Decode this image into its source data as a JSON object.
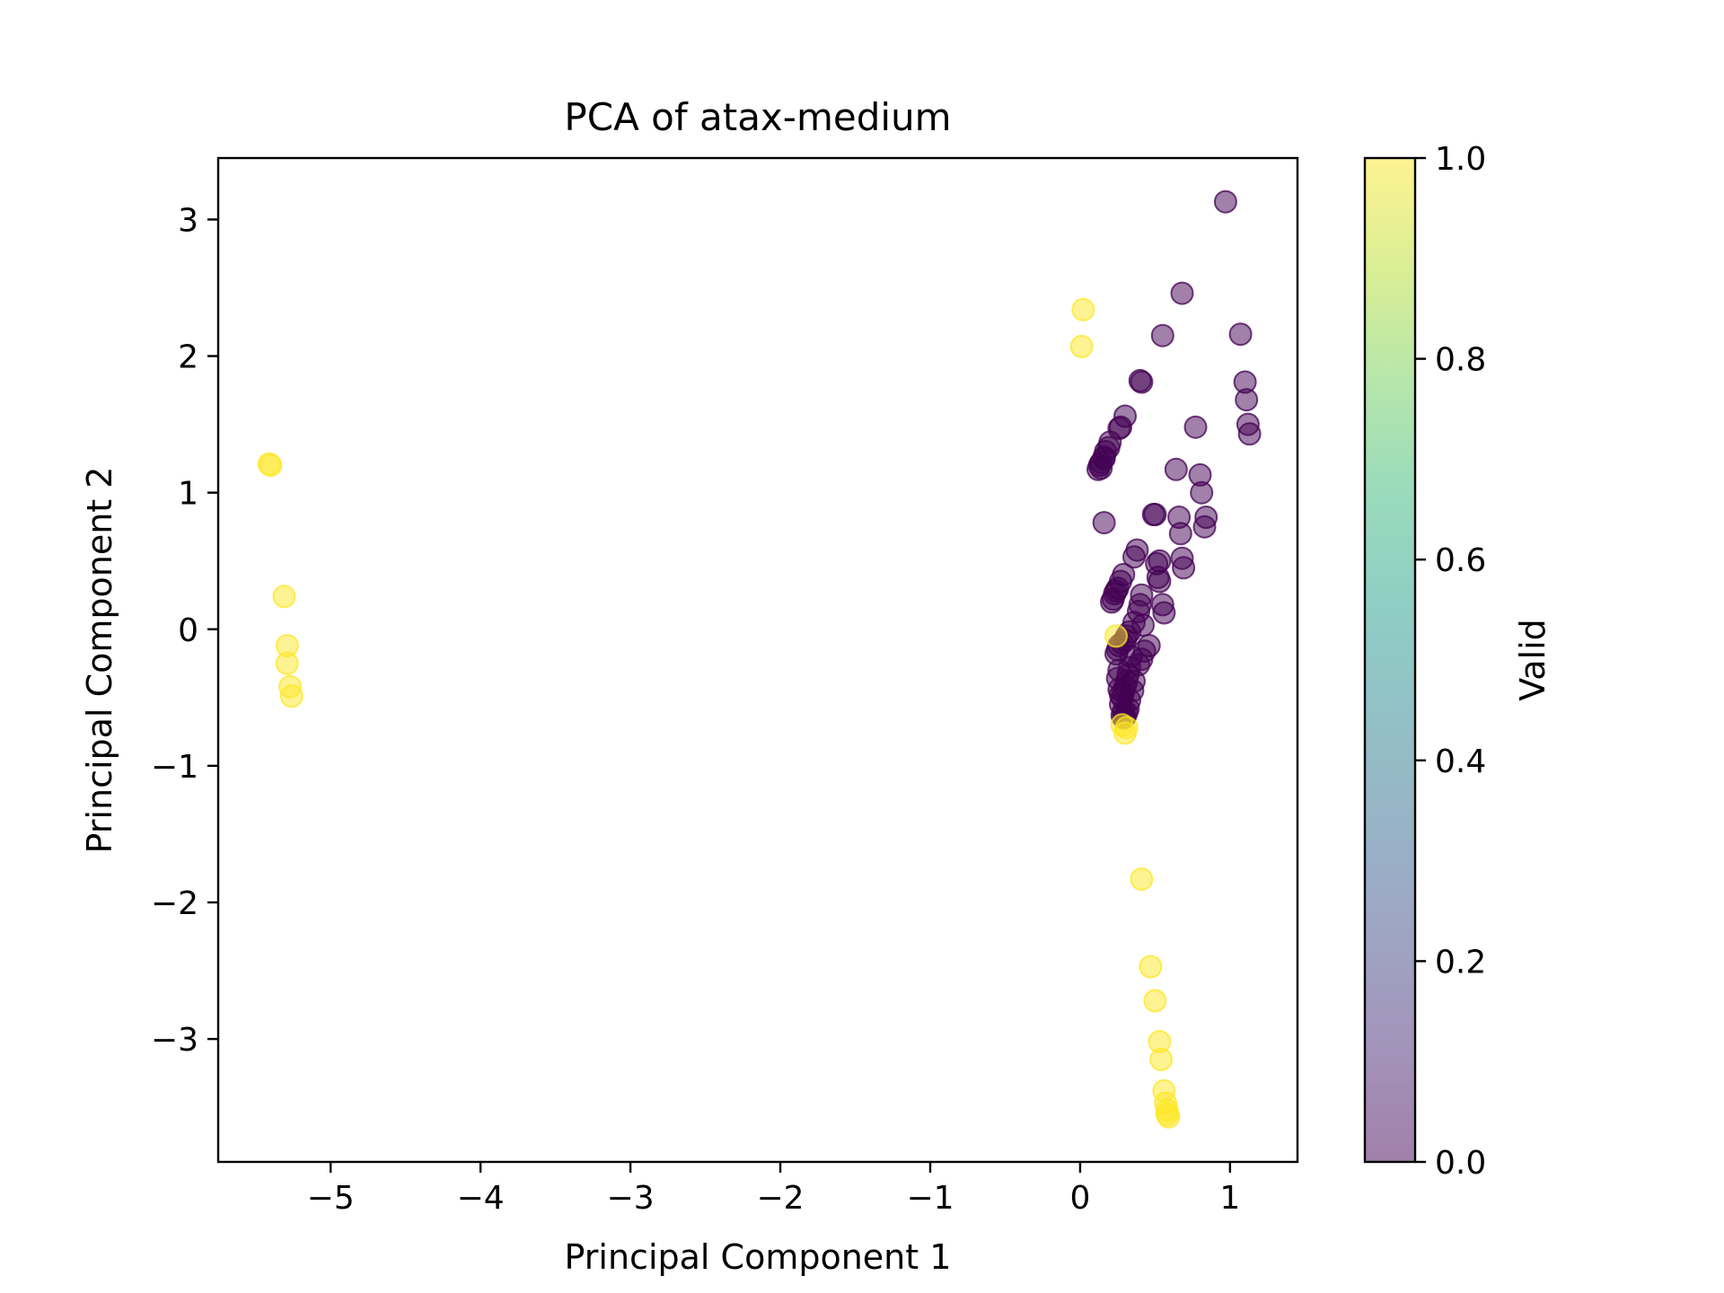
{
  "chart_data": {
    "type": "scatter",
    "title": "PCA of atax-medium",
    "xlabel": "Principal Component 1",
    "ylabel": "Principal Component 2",
    "xlim": [
      -5.75,
      1.45
    ],
    "ylim": [
      -3.9,
      3.45
    ],
    "xticks": [
      -5,
      -4,
      -3,
      -2,
      -1,
      0,
      1
    ],
    "yticks": [
      -3,
      -2,
      -1,
      0,
      1,
      2,
      3
    ],
    "grid": false,
    "point_alpha": 0.5,
    "colorbar": {
      "label": "Valid",
      "range": [
        0.0,
        1.0
      ],
      "ticks": [
        0.0,
        0.2,
        0.4,
        0.6,
        0.8,
        1.0
      ],
      "tick_labels": [
        "0.0",
        "0.2",
        "0.4",
        "0.6",
        "0.8",
        "1.0"
      ],
      "colormap": "viridis",
      "colors": [
        "#440154",
        "#482878",
        "#3e4989",
        "#31688e",
        "#26828e",
        "#1f9e89",
        "#35b779",
        "#6ece58",
        "#b5de2b",
        "#fde725"
      ]
    },
    "series": [
      {
        "valid": 1,
        "color": "#fde725",
        "points": [
          [
            -5.41,
            1.21
          ],
          [
            -5.4,
            1.2
          ],
          [
            -5.31,
            0.24
          ],
          [
            -5.29,
            -0.12
          ],
          [
            -5.29,
            -0.25
          ],
          [
            -5.27,
            -0.42
          ],
          [
            -5.26,
            -0.49
          ],
          [
            0.02,
            2.34
          ],
          [
            0.01,
            2.07
          ],
          [
            0.24,
            -0.05
          ],
          [
            0.28,
            -0.7
          ],
          [
            0.3,
            -0.76
          ],
          [
            0.31,
            -0.72
          ],
          [
            0.41,
            -1.83
          ],
          [
            0.47,
            -2.47
          ],
          [
            0.5,
            -2.72
          ],
          [
            0.53,
            -3.02
          ],
          [
            0.54,
            -3.15
          ],
          [
            0.56,
            -3.38
          ],
          [
            0.57,
            -3.47
          ],
          [
            0.58,
            -3.52
          ],
          [
            0.59,
            -3.57
          ],
          [
            0.58,
            -3.55
          ]
        ]
      },
      {
        "valid": 0,
        "color": "#440154",
        "points": [
          [
            0.97,
            3.13
          ],
          [
            0.68,
            2.46
          ],
          [
            0.55,
            2.15
          ],
          [
            1.07,
            2.16
          ],
          [
            0.4,
            1.82
          ],
          [
            0.41,
            1.81
          ],
          [
            1.1,
            1.81
          ],
          [
            1.11,
            1.68
          ],
          [
            1.12,
            1.5
          ],
          [
            1.13,
            1.43
          ],
          [
            0.77,
            1.48
          ],
          [
            0.3,
            1.56
          ],
          [
            0.27,
            1.48
          ],
          [
            0.26,
            1.47
          ],
          [
            0.2,
            1.37
          ],
          [
            0.19,
            1.33
          ],
          [
            0.17,
            1.3
          ],
          [
            0.16,
            1.26
          ],
          [
            0.14,
            1.22
          ],
          [
            0.13,
            1.2
          ],
          [
            0.12,
            1.17
          ],
          [
            0.14,
            1.18
          ],
          [
            0.16,
            1.25
          ],
          [
            0.64,
            1.17
          ],
          [
            0.8,
            1.13
          ],
          [
            0.81,
            1.0
          ],
          [
            0.84,
            0.82
          ],
          [
            0.83,
            0.75
          ],
          [
            0.66,
            0.82
          ],
          [
            0.67,
            0.7
          ],
          [
            0.16,
            0.78
          ],
          [
            0.49,
            0.84
          ],
          [
            0.5,
            0.84
          ],
          [
            0.38,
            0.58
          ],
          [
            0.36,
            0.53
          ],
          [
            0.53,
            0.5
          ],
          [
            0.51,
            0.48
          ],
          [
            0.68,
            0.52
          ],
          [
            0.69,
            0.45
          ],
          [
            0.52,
            0.38
          ],
          [
            0.53,
            0.35
          ],
          [
            0.29,
            0.4
          ],
          [
            0.27,
            0.35
          ],
          [
            0.25,
            0.3
          ],
          [
            0.23,
            0.26
          ],
          [
            0.22,
            0.22
          ],
          [
            0.21,
            0.2
          ],
          [
            0.24,
            0.28
          ],
          [
            0.41,
            0.25
          ],
          [
            0.4,
            0.18
          ],
          [
            0.39,
            0.13
          ],
          [
            0.55,
            0.18
          ],
          [
            0.56,
            0.12
          ],
          [
            0.42,
            0.03
          ],
          [
            0.36,
            0.05
          ],
          [
            0.33,
            -0.02
          ],
          [
            0.31,
            -0.05
          ],
          [
            0.3,
            -0.08
          ],
          [
            0.28,
            -0.1
          ],
          [
            0.26,
            -0.12
          ],
          [
            0.25,
            -0.15
          ],
          [
            0.24,
            -0.18
          ],
          [
            0.46,
            -0.12
          ],
          [
            0.43,
            -0.16
          ],
          [
            0.41,
            -0.22
          ],
          [
            0.39,
            -0.26
          ],
          [
            0.34,
            -0.2
          ],
          [
            0.33,
            -0.28
          ],
          [
            0.32,
            -0.33
          ],
          [
            0.31,
            -0.38
          ],
          [
            0.3,
            -0.42
          ],
          [
            0.29,
            -0.46
          ],
          [
            0.28,
            -0.5
          ],
          [
            0.27,
            -0.55
          ],
          [
            0.26,
            -0.3
          ],
          [
            0.25,
            -0.36
          ],
          [
            0.26,
            -0.44
          ],
          [
            0.27,
            -0.48
          ],
          [
            0.36,
            -0.38
          ],
          [
            0.35,
            -0.45
          ],
          [
            0.33,
            -0.52
          ],
          [
            0.32,
            -0.58
          ],
          [
            0.29,
            -0.6
          ],
          [
            0.28,
            -0.63
          ],
          [
            0.29,
            -0.65
          ],
          [
            0.3,
            -0.64
          ],
          [
            0.31,
            -0.61
          ]
        ]
      }
    ]
  }
}
